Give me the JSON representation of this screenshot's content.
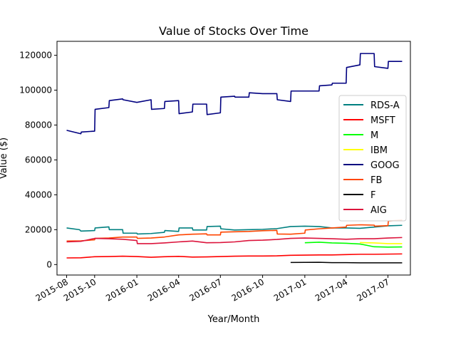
{
  "chart_data": {
    "type": "line",
    "title": "Value of Stocks Over Time",
    "xlabel": "Year/Month",
    "ylabel": "Value ($)",
    "xlim": [
      "2015-07-11",
      "2017-08-19"
    ],
    "ylim": [
      -6000,
      128000
    ],
    "x_ticks": [
      {
        "date": "2015-08-01",
        "label": "2015-08"
      },
      {
        "date": "2015-10-01",
        "label": "2015-10"
      },
      {
        "date": "2016-01-01",
        "label": "2016-01"
      },
      {
        "date": "2016-04-01",
        "label": "2016-04"
      },
      {
        "date": "2016-07-01",
        "label": "2016-07"
      },
      {
        "date": "2016-10-01",
        "label": "2016-10"
      },
      {
        "date": "2017-01-01",
        "label": "2017-01"
      },
      {
        "date": "2017-04-01",
        "label": "2017-04"
      },
      {
        "date": "2017-07-01",
        "label": "2017-07"
      }
    ],
    "y_ticks": [
      {
        "value": 0,
        "label": "0"
      },
      {
        "value": 20000,
        "label": "20000"
      },
      {
        "value": 40000,
        "label": "40000"
      },
      {
        "value": 60000,
        "label": "60000"
      },
      {
        "value": 80000,
        "label": "80000"
      },
      {
        "value": 100000,
        "label": "100000"
      },
      {
        "value": 120000,
        "label": "120000"
      }
    ],
    "legend_position": "center-right",
    "grid": false,
    "series": [
      {
        "name": "RDS-A",
        "color": "#008080",
        "points": [
          [
            "2015-08-01",
            21000
          ],
          [
            "2015-08-29",
            20000
          ],
          [
            "2015-09-01",
            19200
          ],
          [
            "2015-10-01",
            19500
          ],
          [
            "2015-10-02",
            21000
          ],
          [
            "2015-11-01",
            21600
          ],
          [
            "2015-11-02",
            20000
          ],
          [
            "2015-12-01",
            20000
          ],
          [
            "2015-12-02",
            18000
          ],
          [
            "2016-01-01",
            18000
          ],
          [
            "2016-01-02",
            17500
          ],
          [
            "2016-02-01",
            17800
          ],
          [
            "2016-03-01",
            18500
          ],
          [
            "2016-03-02",
            19500
          ],
          [
            "2016-04-01",
            19000
          ],
          [
            "2016-04-02",
            21000
          ],
          [
            "2016-05-01",
            21000
          ],
          [
            "2016-05-02",
            19800
          ],
          [
            "2016-06-01",
            19800
          ],
          [
            "2016-06-02",
            21800
          ],
          [
            "2016-07-01",
            22000
          ],
          [
            "2016-07-02",
            20500
          ],
          [
            "2016-08-01",
            19800
          ],
          [
            "2016-09-01",
            20000
          ],
          [
            "2016-10-01",
            20200
          ],
          [
            "2016-11-01",
            20600
          ],
          [
            "2016-12-01",
            21800
          ],
          [
            "2017-01-01",
            22000
          ],
          [
            "2017-02-01",
            21800
          ],
          [
            "2017-03-01",
            21000
          ],
          [
            "2017-04-01",
            21000
          ],
          [
            "2017-05-01",
            20800
          ],
          [
            "2017-06-01",
            21500
          ],
          [
            "2017-07-01",
            22200
          ],
          [
            "2017-08-01",
            22500
          ]
        ]
      },
      {
        "name": "MSFT",
        "color": "#ff0000",
        "points": [
          [
            "2015-08-01",
            3800
          ],
          [
            "2015-09-01",
            3900
          ],
          [
            "2015-10-01",
            4500
          ],
          [
            "2015-11-01",
            4600
          ],
          [
            "2015-12-01",
            4800
          ],
          [
            "2016-01-01",
            4600
          ],
          [
            "2016-02-01",
            4200
          ],
          [
            "2016-03-01",
            4500
          ],
          [
            "2016-04-01",
            4700
          ],
          [
            "2016-05-01",
            4300
          ],
          [
            "2016-06-01",
            4400
          ],
          [
            "2016-07-01",
            4600
          ],
          [
            "2016-08-01",
            4800
          ],
          [
            "2016-09-01",
            4900
          ],
          [
            "2016-10-01",
            4900
          ],
          [
            "2016-11-01",
            5000
          ],
          [
            "2016-12-01",
            5300
          ],
          [
            "2017-01-01",
            5400
          ],
          [
            "2017-02-01",
            5500
          ],
          [
            "2017-03-01",
            5500
          ],
          [
            "2017-04-01",
            5700
          ],
          [
            "2017-05-01",
            5900
          ],
          [
            "2017-06-01",
            5900
          ],
          [
            "2017-07-01",
            6000
          ],
          [
            "2017-08-01",
            6100
          ]
        ]
      },
      {
        "name": "M",
        "color": "#00ff00",
        "points": [
          [
            "2017-01-01",
            12500
          ],
          [
            "2017-02-01",
            12800
          ],
          [
            "2017-03-01",
            12400
          ],
          [
            "2017-04-01",
            12200
          ],
          [
            "2017-05-01",
            11800
          ],
          [
            "2017-06-01",
            10200
          ],
          [
            "2017-07-01",
            10000
          ],
          [
            "2017-08-01",
            10100
          ]
        ]
      },
      {
        "name": "IBM",
        "color": "#ffff00",
        "points": [
          [
            "2017-05-01",
            12600
          ],
          [
            "2017-06-01",
            12400
          ],
          [
            "2017-07-01",
            12000
          ],
          [
            "2017-08-01",
            12000
          ]
        ]
      },
      {
        "name": "GOOG",
        "color": "#000080",
        "points": [
          [
            "2015-08-01",
            77000
          ],
          [
            "2015-09-01",
            75000
          ],
          [
            "2015-09-02",
            76000
          ],
          [
            "2015-10-01",
            76500
          ],
          [
            "2015-10-02",
            89000
          ],
          [
            "2015-11-01",
            90000
          ],
          [
            "2015-11-02",
            94000
          ],
          [
            "2015-12-01",
            95000
          ],
          [
            "2015-12-02",
            94500
          ],
          [
            "2016-01-01",
            93000
          ],
          [
            "2016-02-01",
            94500
          ],
          [
            "2016-02-02",
            89000
          ],
          [
            "2016-03-01",
            89500
          ],
          [
            "2016-03-02",
            93500
          ],
          [
            "2016-04-01",
            94000
          ],
          [
            "2016-04-02",
            86500
          ],
          [
            "2016-05-01",
            87500
          ],
          [
            "2016-05-02",
            92000
          ],
          [
            "2016-06-01",
            92000
          ],
          [
            "2016-06-02",
            86000
          ],
          [
            "2016-07-01",
            87000
          ],
          [
            "2016-07-02",
            96000
          ],
          [
            "2016-08-01",
            96500
          ],
          [
            "2016-08-02",
            96000
          ],
          [
            "2016-09-01",
            96000
          ],
          [
            "2016-09-02",
            98500
          ],
          [
            "2016-10-01",
            98000
          ],
          [
            "2016-11-01",
            98000
          ],
          [
            "2016-11-02",
            94500
          ],
          [
            "2016-12-01",
            93500
          ],
          [
            "2016-12-02",
            99500
          ],
          [
            "2017-01-01",
            99500
          ],
          [
            "2017-02-01",
            99500
          ],
          [
            "2017-02-02",
            102500
          ],
          [
            "2017-03-01",
            103000
          ],
          [
            "2017-03-02",
            104000
          ],
          [
            "2017-04-01",
            104000
          ],
          [
            "2017-04-02",
            113000
          ],
          [
            "2017-05-01",
            114500
          ],
          [
            "2017-05-02",
            121000
          ],
          [
            "2017-06-01",
            121000
          ],
          [
            "2017-06-02",
            113500
          ],
          [
            "2017-07-01",
            112500
          ],
          [
            "2017-07-02",
            116500
          ],
          [
            "2017-08-01",
            116500
          ]
        ]
      },
      {
        "name": "FB",
        "color": "#ff4500",
        "points": [
          [
            "2015-08-01",
            13500
          ],
          [
            "2015-09-01",
            13600
          ],
          [
            "2015-10-01",
            14200
          ],
          [
            "2015-10-02",
            15000
          ],
          [
            "2015-11-01",
            15200
          ],
          [
            "2015-12-01",
            15800
          ],
          [
            "2016-01-01",
            15800
          ],
          [
            "2016-01-02",
            15000
          ],
          [
            "2016-02-01",
            15200
          ],
          [
            "2016-03-01",
            15800
          ],
          [
            "2016-04-01",
            17000
          ],
          [
            "2016-05-01",
            17400
          ],
          [
            "2016-06-01",
            17600
          ],
          [
            "2016-06-02",
            17000
          ],
          [
            "2016-07-01",
            17000
          ],
          [
            "2016-07-02",
            18600
          ],
          [
            "2016-08-01",
            18800
          ],
          [
            "2016-09-01",
            19000
          ],
          [
            "2016-10-01",
            19400
          ],
          [
            "2016-11-01",
            19600
          ],
          [
            "2016-11-02",
            17500
          ],
          [
            "2016-12-01",
            17400
          ],
          [
            "2017-01-01",
            18000
          ],
          [
            "2017-01-02",
            19800
          ],
          [
            "2017-02-01",
            20500
          ],
          [
            "2017-03-01",
            21000
          ],
          [
            "2017-04-01",
            21500
          ],
          [
            "2017-04-02",
            22500
          ],
          [
            "2017-05-01",
            22800
          ],
          [
            "2017-06-01",
            22600
          ],
          [
            "2017-06-02",
            22000
          ],
          [
            "2017-07-01",
            22300
          ],
          [
            "2017-07-02",
            25000
          ],
          [
            "2017-08-01",
            25500
          ]
        ]
      },
      {
        "name": "F",
        "color": "#000000",
        "points": [
          [
            "2016-12-01",
            1200
          ],
          [
            "2017-02-01",
            1300
          ],
          [
            "2017-03-01",
            1100
          ],
          [
            "2017-04-01",
            1100
          ],
          [
            "2017-05-01",
            1000
          ],
          [
            "2017-06-01",
            1000
          ],
          [
            "2017-07-01",
            1000
          ],
          [
            "2017-08-01",
            1000
          ]
        ]
      },
      {
        "name": "AIG",
        "color": "#dc143c",
        "points": [
          [
            "2015-08-01",
            13000
          ],
          [
            "2015-09-01",
            13300
          ],
          [
            "2015-10-01",
            15000
          ],
          [
            "2015-11-01",
            14800
          ],
          [
            "2015-12-01",
            14500
          ],
          [
            "2016-01-01",
            13800
          ],
          [
            "2016-01-02",
            12000
          ],
          [
            "2016-02-01",
            12000
          ],
          [
            "2016-03-01",
            12400
          ],
          [
            "2016-04-01",
            13000
          ],
          [
            "2016-05-01",
            13500
          ],
          [
            "2016-06-01",
            12500
          ],
          [
            "2016-07-01",
            12600
          ],
          [
            "2016-08-01",
            13000
          ],
          [
            "2016-09-01",
            13800
          ],
          [
            "2016-10-01",
            14000
          ],
          [
            "2016-11-01",
            14400
          ],
          [
            "2016-12-01",
            15000
          ],
          [
            "2017-01-01",
            15200
          ],
          [
            "2017-02-01",
            15000
          ],
          [
            "2017-03-01",
            14800
          ],
          [
            "2017-04-01",
            14500
          ],
          [
            "2017-05-01",
            14800
          ],
          [
            "2017-06-01",
            14800
          ],
          [
            "2017-07-01",
            15200
          ],
          [
            "2017-08-01",
            15500
          ]
        ]
      }
    ]
  }
}
